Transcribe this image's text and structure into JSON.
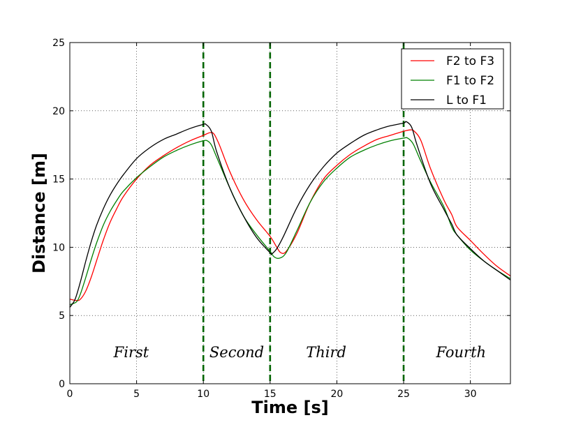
{
  "chart_data": {
    "type": "line",
    "title": "",
    "xlabel": "Time [s]",
    "ylabel": "Distance [m]",
    "xlim": [
      0,
      33
    ],
    "ylim": [
      0,
      25
    ],
    "grid": true,
    "x_ticks": [
      0,
      5,
      10,
      15,
      20,
      25,
      30
    ],
    "y_ticks": [
      0,
      5,
      10,
      15,
      20,
      25
    ],
    "legend_position": "top-right",
    "series": [
      {
        "name": "F2 to F3",
        "color": "#ff0000",
        "x": [
          0,
          0.5,
          0.8,
          1.2,
          1.6,
          2,
          2.5,
          3,
          3.5,
          4,
          5,
          6,
          7,
          8,
          9,
          10,
          10.5,
          10.8,
          11.2,
          12,
          13,
          14,
          15,
          15.5,
          15.8,
          16.2,
          17,
          18,
          19,
          20,
          21,
          22,
          23,
          24,
          25,
          25.5,
          25.8,
          26.3,
          27,
          28,
          28.6,
          29,
          30,
          31,
          32,
          33
        ],
        "y": [
          6.2,
          6.1,
          6.2,
          6.8,
          7.8,
          9.0,
          10.5,
          11.8,
          12.8,
          13.7,
          15.0,
          16.0,
          16.7,
          17.3,
          17.8,
          18.2,
          18.4,
          18.3,
          17.5,
          15.5,
          13.5,
          12.0,
          10.8,
          10.0,
          9.6,
          9.7,
          11.0,
          13.3,
          15.0,
          16.0,
          16.8,
          17.4,
          17.9,
          18.2,
          18.5,
          18.6,
          18.5,
          17.8,
          15.8,
          13.5,
          12.4,
          11.5,
          10.5,
          9.5,
          8.6,
          7.9
        ]
      },
      {
        "name": "F1 to F2",
        "color": "#008000",
        "x": [
          0,
          0.5,
          0.8,
          1.2,
          1.6,
          2,
          2.5,
          3,
          3.5,
          4,
          5,
          6,
          7,
          8,
          9,
          10,
          10.3,
          10.6,
          11,
          12,
          13,
          14,
          15,
          15.3,
          15.7,
          16.2,
          17,
          18,
          19,
          20,
          21,
          22,
          23,
          24,
          25,
          25.3,
          25.7,
          26.2,
          27,
          28,
          28.6,
          29,
          30,
          31,
          32,
          33
        ],
        "y": [
          5.8,
          6.0,
          6.6,
          7.8,
          9.1,
          10.3,
          11.6,
          12.6,
          13.4,
          14.1,
          15.1,
          15.9,
          16.6,
          17.1,
          17.5,
          17.8,
          17.8,
          17.5,
          16.6,
          14.3,
          12.3,
          10.9,
          9.7,
          9.3,
          9.2,
          9.6,
          11.2,
          13.3,
          14.8,
          15.8,
          16.6,
          17.1,
          17.5,
          17.8,
          18.0,
          18.0,
          17.6,
          16.5,
          14.8,
          13.0,
          11.5,
          10.9,
          9.8,
          9.0,
          8.3,
          7.7
        ]
      },
      {
        "name": "L to F1",
        "color": "#000000",
        "x": [
          0,
          0.4,
          0.8,
          1.2,
          1.6,
          2,
          2.5,
          3,
          3.5,
          4,
          5,
          6,
          7,
          8,
          9,
          10,
          10.2,
          10.6,
          11,
          12,
          13,
          14,
          15,
          15.1,
          15.5,
          16,
          17,
          18,
          19,
          20,
          21,
          22,
          23,
          24,
          25,
          25.2,
          25.6,
          26,
          27,
          28,
          28.6,
          29,
          30,
          31,
          32,
          33
        ],
        "y": [
          5.6,
          6.2,
          7.5,
          9.0,
          10.4,
          11.6,
          12.8,
          13.8,
          14.6,
          15.3,
          16.5,
          17.3,
          17.9,
          18.3,
          18.7,
          19.0,
          19.0,
          18.5,
          17.0,
          14.3,
          12.3,
          10.7,
          9.6,
          9.5,
          9.9,
          10.8,
          12.9,
          14.6,
          15.9,
          16.9,
          17.6,
          18.2,
          18.6,
          18.9,
          19.1,
          19.2,
          18.8,
          17.5,
          14.7,
          12.8,
          11.7,
          10.9,
          9.9,
          9.0,
          8.3,
          7.6
        ]
      }
    ],
    "vertical_markers": [
      10,
      15,
      25
    ],
    "marker_color": "#006400",
    "phase_labels": [
      {
        "text": "First",
        "x": 4.6,
        "y": 2.3
      },
      {
        "text": "Second",
        "x": 12.5,
        "y": 2.3
      },
      {
        "text": "Third",
        "x": 19.2,
        "y": 2.3
      },
      {
        "text": "Fourth",
        "x": 29.3,
        "y": 2.3
      }
    ]
  }
}
